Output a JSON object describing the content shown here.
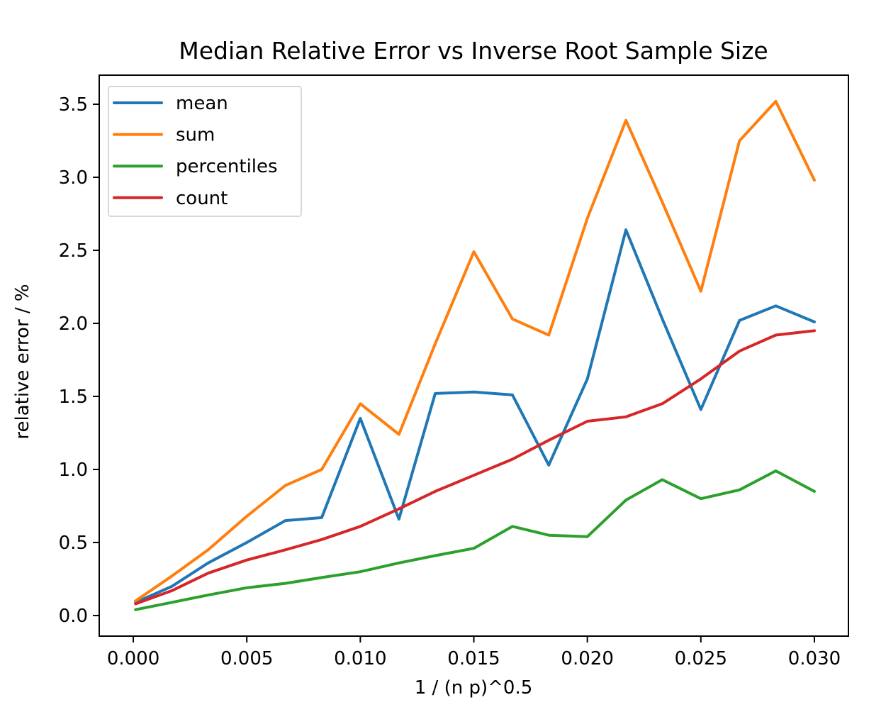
{
  "chart_data": {
    "type": "line",
    "title": "Median Relative Error vs Inverse Root Sample Size",
    "xlabel": "1 / (n p)^0.5",
    "ylabel": "relative error / %",
    "legend_position": "upper left",
    "grid": false,
    "xlim": [
      -0.0015,
      0.0315
    ],
    "ylim": [
      -0.141,
      3.699
    ],
    "xticks": {
      "values": [
        0.0,
        0.005,
        0.01,
        0.015,
        0.02,
        0.025,
        0.03
      ],
      "labels": [
        "0.000",
        "0.005",
        "0.010",
        "0.015",
        "0.020",
        "0.025",
        "0.030"
      ]
    },
    "yticks": {
      "values": [
        0.0,
        0.5,
        1.0,
        1.5,
        2.0,
        2.5,
        3.0,
        3.5
      ],
      "labels": [
        "0.0",
        "0.5",
        "1.0",
        "1.5",
        "2.0",
        "2.5",
        "3.0",
        "3.5"
      ]
    },
    "x": [
      0.0001,
      0.0017,
      0.0033,
      0.005,
      0.0067,
      0.0083,
      0.01,
      0.0117,
      0.0133,
      0.015,
      0.0167,
      0.0183,
      0.02,
      0.0217,
      0.0233,
      0.025,
      0.0267,
      0.0283,
      0.03
    ],
    "series": [
      {
        "name": "mean",
        "color": "#1f77b4",
        "values": [
          0.09,
          0.2,
          0.36,
          0.5,
          0.65,
          0.67,
          1.35,
          0.66,
          1.52,
          1.53,
          1.51,
          1.03,
          1.62,
          2.64,
          2.03,
          1.41,
          2.02,
          2.12,
          2.01
        ]
      },
      {
        "name": "sum",
        "color": "#ff7f0e",
        "values": [
          0.1,
          0.27,
          0.45,
          0.68,
          0.89,
          1.0,
          1.45,
          1.24,
          1.86,
          2.49,
          2.03,
          1.92,
          2.72,
          3.39,
          2.83,
          2.22,
          3.25,
          3.52,
          2.98
        ]
      },
      {
        "name": "percentiles",
        "color": "#2ca02c",
        "values": [
          0.04,
          0.09,
          0.14,
          0.19,
          0.22,
          0.26,
          0.3,
          0.36,
          0.41,
          0.46,
          0.61,
          0.55,
          0.54,
          0.79,
          0.93,
          0.8,
          0.86,
          0.99,
          0.85
        ]
      },
      {
        "name": "count",
        "color": "#d62728",
        "values": [
          0.08,
          0.17,
          0.29,
          0.38,
          0.45,
          0.52,
          0.61,
          0.73,
          0.85,
          0.96,
          1.07,
          1.2,
          1.33,
          1.36,
          1.45,
          1.62,
          1.81,
          1.92,
          1.95
        ]
      }
    ]
  }
}
